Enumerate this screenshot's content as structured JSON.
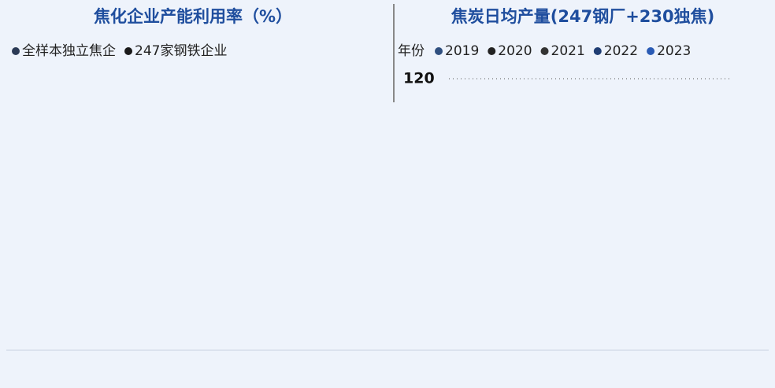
{
  "chart_data": [
    {
      "type": "line",
      "title": "焦化企业产能利用率（%）",
      "series": [
        {
          "name": "全样本独立焦企",
          "color": "#2b3a55"
        },
        {
          "name": "247家钢铁企业",
          "color": "#1a1a1a"
        }
      ]
    },
    {
      "type": "line",
      "title": "焦炭日均产量(247钢厂+230独焦)",
      "legend_title": "年份",
      "series": [
        {
          "name": "2019",
          "color": "#2f4f7f"
        },
        {
          "name": "2020",
          "color": "#222222"
        },
        {
          "name": "2021",
          "color": "#333333"
        },
        {
          "name": "2022",
          "color": "#1f3d73"
        },
        {
          "name": "2023",
          "color": "#2a5bb5"
        }
      ],
      "yticks": [
        120
      ]
    }
  ]
}
